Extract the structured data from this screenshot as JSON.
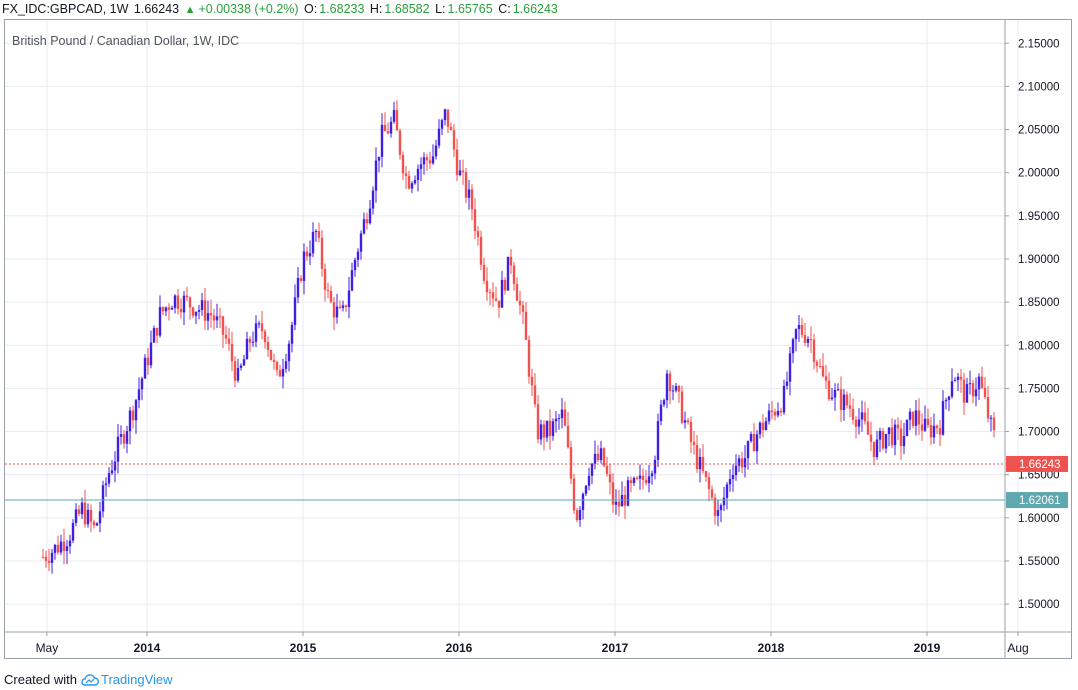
{
  "header": {
    "symbol": "FX_IDC:GBPCAD, 1W",
    "last": "1.66243",
    "change": "+0.00338 (+0.2%)",
    "o_label": "O:",
    "o_value": "1.68233",
    "h_label": "H:",
    "h_value": "1.68582",
    "l_label": "L:",
    "l_value": "1.65765",
    "c_label": "C:",
    "c_value": "1.66243",
    "up_color": "#2a9d3c"
  },
  "footer": {
    "created_with": "Created with",
    "brand": "TradingView",
    "brand_icon": "tradingview-cloud-icon"
  },
  "chart_data": {
    "type": "candlestick",
    "title": "British Pound / Canadian Dollar, 1W, IDC",
    "x_ticks": [
      "May",
      "2014",
      "2015",
      "2016",
      "2017",
      "2018",
      "2019",
      "Aug"
    ],
    "y_ticks": [
      "1.50000",
      "1.55000",
      "1.60000",
      "1.65000",
      "1.70000",
      "1.75000",
      "1.80000",
      "1.85000",
      "1.90000",
      "1.95000",
      "2.00000",
      "2.05000",
      "2.10000",
      "2.15000"
    ],
    "ylim": [
      1.47,
      2.17
    ],
    "price_line": {
      "label": "1.66243",
      "value": 1.66243,
      "color": "#ef5350"
    },
    "level_line": {
      "label": "1.62061",
      "value": 1.62061,
      "color": "#5fa8b0"
    },
    "colors": {
      "up": "#3f1fe0",
      "down": "#ef5350",
      "grid": "#e8ebf0"
    },
    "grid": true,
    "series_path": [
      [
        "2013-05",
        1.555
      ],
      [
        "2013-06",
        1.565
      ],
      [
        "2013-07",
        1.58
      ],
      [
        "2013-08",
        1.61
      ],
      [
        "2013-09",
        1.585
      ],
      [
        "2013-10",
        1.65
      ],
      [
        "2013-11",
        1.69
      ],
      [
        "2013-12",
        1.73
      ],
      [
        "2014-02",
        1.835
      ],
      [
        "2014-03",
        1.855
      ],
      [
        "2014-04",
        1.85
      ],
      [
        "2014-06",
        1.835
      ],
      [
        "2014-07",
        1.81
      ],
      [
        "2014-08",
        1.76
      ],
      [
        "2014-09",
        1.81
      ],
      [
        "2014-10",
        1.82
      ],
      [
        "2014-11",
        1.76
      ],
      [
        "2014-12",
        1.81
      ],
      [
        "2015-01",
        1.9
      ],
      [
        "2015-02",
        1.93
      ],
      [
        "2015-03",
        1.85
      ],
      [
        "2015-04",
        1.83
      ],
      [
        "2015-05",
        1.9
      ],
      [
        "2015-06",
        1.96
      ],
      [
        "2015-07",
        2.04
      ],
      [
        "2015-08",
        2.06
      ],
      [
        "2015-09",
        1.99
      ],
      [
        "2015-10",
        2.01
      ],
      [
        "2015-11",
        2.02
      ],
      [
        "2015-12",
        2.07
      ],
      [
        "2016-01",
        2.0
      ],
      [
        "2016-02",
        1.96
      ],
      [
        "2016-03",
        1.88
      ],
      [
        "2016-04",
        1.85
      ],
      [
        "2016-05",
        1.9
      ],
      [
        "2016-06",
        1.82
      ],
      [
        "2016-07",
        1.7
      ],
      [
        "2016-08",
        1.7
      ],
      [
        "2016-09",
        1.72
      ],
      [
        "2016-10",
        1.6
      ],
      [
        "2016-11",
        1.66
      ],
      [
        "2016-12",
        1.67
      ],
      [
        "2017-01",
        1.61
      ],
      [
        "2017-02",
        1.63
      ],
      [
        "2017-03",
        1.64
      ],
      [
        "2017-04",
        1.67
      ],
      [
        "2017-05",
        1.77
      ],
      [
        "2017-06",
        1.73
      ],
      [
        "2017-07",
        1.68
      ],
      [
        "2017-08",
        1.64
      ],
      [
        "2017-09",
        1.6
      ],
      [
        "2017-10",
        1.66
      ],
      [
        "2017-11",
        1.67
      ],
      [
        "2017-12",
        1.7
      ],
      [
        "2018-01",
        1.72
      ],
      [
        "2018-02",
        1.74
      ],
      [
        "2018-03",
        1.82
      ],
      [
        "2018-04",
        1.81
      ],
      [
        "2018-05",
        1.76
      ],
      [
        "2018-06",
        1.74
      ],
      [
        "2018-07",
        1.73
      ],
      [
        "2018-08",
        1.71
      ],
      [
        "2018-09",
        1.68
      ],
      [
        "2018-10",
        1.7
      ],
      [
        "2018-11",
        1.69
      ],
      [
        "2018-12",
        1.72
      ],
      [
        "2019-01",
        1.7
      ],
      [
        "2019-02",
        1.71
      ],
      [
        "2019-03",
        1.77
      ],
      [
        "2019-04",
        1.74
      ],
      [
        "2019-05",
        1.76
      ],
      [
        "2019-06",
        1.7
      ],
      [
        "2019-07",
        1.66243
      ]
    ]
  }
}
